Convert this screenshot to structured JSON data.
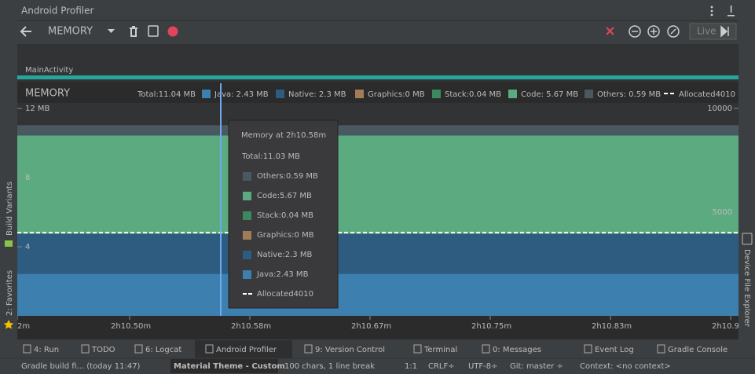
{
  "window_title": "Android Profiler",
  "toolbar": {
    "profiler_select": "MEMORY",
    "live_button": "Live"
  },
  "event_timeline": {
    "activity": "MainActivity"
  },
  "memory_chart": {
    "type": "stacked-area",
    "title": "MEMORY",
    "total_label": "Total:11.04 MB",
    "ylim": [
      0,
      12
    ],
    "yticks": [
      {
        "value": 4,
        "label": "4"
      },
      {
        "value": 8,
        "label": "8"
      },
      {
        "value": 12,
        "label": "12 MB"
      }
    ],
    "y2lim": [
      0,
      10000
    ],
    "y2ticks": [
      5000,
      10000
    ],
    "series": [
      {
        "legend_label": "Java: 2.43 MB",
        "tooltip_label": "Java:2.43 MB",
        "color": "#3d7fae",
        "value": 2.43
      },
      {
        "legend_label": "Native:  2.3 MB",
        "tooltip_label": "Native:2.3 MB",
        "color": "#2d5c80",
        "value": 2.3
      },
      {
        "legend_label": "Graphics:0 MB",
        "tooltip_label": "Graphics:0 MB",
        "color": "#a07c58",
        "value": 0
      },
      {
        "legend_label": "Stack:0.04 MB",
        "tooltip_label": "Stack:0.04 MB",
        "color": "#3b8a5f",
        "value": 0.04
      },
      {
        "legend_label": "Code: 5.67 MB",
        "tooltip_label": "Code:5.67 MB",
        "color": "#5cab80",
        "value": 5.67
      },
      {
        "legend_label": "Others: 0.59 MB",
        "tooltip_label": "Others:0.59 MB",
        "color": "#4a5862",
        "value": 0.59
      }
    ],
    "allocated": {
      "legend_label": "Allocated4010",
      "tooltip_label": "Allocated4010",
      "value": 4010
    },
    "x_labels": [
      "2m",
      "2h10.50m",
      "2h10.58m",
      "2h10.67m",
      "2h10.75m",
      "2h10.83m",
      "2h10.9"
    ],
    "tooltip": {
      "title": "Memory at 2h10.58m",
      "total": "Total:11.03 MB"
    }
  },
  "side_tabs": {
    "left": [
      "Build Variants",
      "2: Favorites"
    ],
    "right": [
      "Device File Explorer"
    ]
  },
  "tool_tabs": [
    "4: Run",
    "TODO",
    "6: Logcat",
    "Android Profiler",
    "9: Version Control",
    "Terminal",
    "0: Messages",
    "Event Log",
    "Gradle Console"
  ],
  "status_bar": [
    "Gradle build fi... (today 11:47)",
    "Material Theme - Custom",
    "100 chars, 1 line break",
    "1:1",
    "CRLF÷",
    "UTF-8÷",
    "Git: master ÷",
    "Context: <no context>"
  ]
}
